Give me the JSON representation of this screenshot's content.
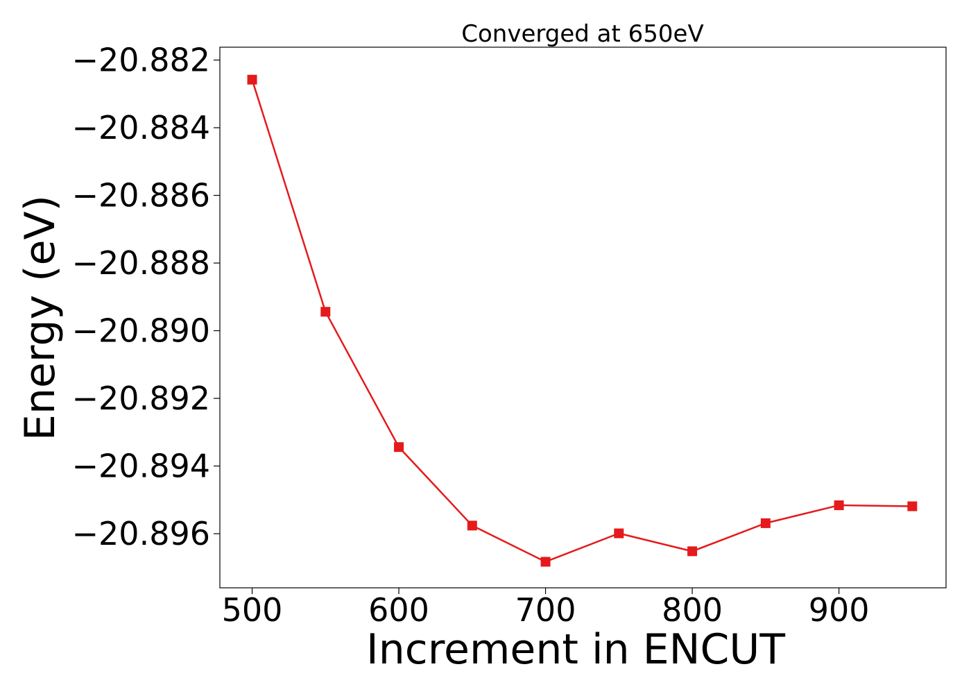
{
  "chart_data": {
    "type": "line",
    "title": "Converged at 650eV",
    "xlabel": "Increment in ENCUT",
    "ylabel": "Energy (eV)",
    "x": [
      500,
      550,
      600,
      650,
      700,
      750,
      800,
      850,
      900,
      950
    ],
    "series": [
      {
        "values": [
          -20.88258,
          -20.88944,
          -20.89344,
          -20.89576,
          -20.89683,
          -20.89599,
          -20.89652,
          -20.89569,
          -20.89516,
          -20.89519
        ],
        "color": "#e41a1c",
        "marker": "square"
      }
    ],
    "xlim": [
      478,
      973
    ],
    "ylim": [
      -20.8976,
      -20.88162
    ],
    "xticks": [
      500,
      600,
      700,
      800,
      900
    ],
    "xtick_labels": [
      "500",
      "600",
      "700",
      "800",
      "900"
    ],
    "yticks": [
      -20.882,
      -20.884,
      -20.886,
      -20.888,
      -20.89,
      -20.892,
      -20.894,
      -20.896
    ],
    "ytick_labels": [
      "−20.882",
      "−20.884",
      "−20.886",
      "−20.888",
      "−20.890",
      "−20.892",
      "−20.894",
      "−20.896"
    ],
    "grid": false,
    "legend": "none"
  }
}
